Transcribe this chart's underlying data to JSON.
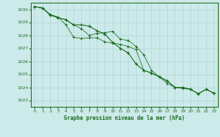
{
  "title": "Graphe pression niveau de la mer (hPa)",
  "background_color": "#cceaea",
  "grid_color": "#b0d4d4",
  "line_color": "#1a6b1a",
  "xlim": [
    -0.5,
    23.5
  ],
  "ylim": [
    1022.5,
    1030.5
  ],
  "yticks": [
    1023,
    1024,
    1025,
    1026,
    1027,
    1028,
    1029,
    1030
  ],
  "xticks": [
    0,
    1,
    2,
    3,
    4,
    5,
    6,
    7,
    8,
    9,
    10,
    11,
    12,
    13,
    14,
    15,
    16,
    17,
    18,
    19,
    20,
    21,
    22,
    23
  ],
  "series": [
    [
      1030.2,
      1030.1,
      1029.6,
      1029.4,
      1028.8,
      1027.85,
      1027.75,
      1027.8,
      1027.8,
      1027.5,
      1027.4,
      1027.3,
      1027.15,
      1026.9,
      1025.3,
      1025.1,
      1024.8,
      1024.5,
      1024.0,
      1024.0,
      1023.85,
      1023.5,
      1023.85,
      1023.55
    ],
    [
      1030.2,
      1030.1,
      1029.55,
      1029.35,
      1029.2,
      1028.8,
      1028.5,
      1028.0,
      1028.15,
      1028.2,
      1028.3,
      1027.7,
      1027.6,
      1027.15,
      1026.5,
      1025.3,
      1024.8,
      1024.3,
      1024.0,
      1023.9,
      1023.85,
      1023.5,
      1023.85,
      1023.55
    ],
    [
      1030.2,
      1030.1,
      1029.55,
      1029.35,
      1029.2,
      1028.8,
      1028.8,
      1028.7,
      1028.35,
      1028.1,
      1027.45,
      1027.0,
      1026.65,
      1025.8,
      1025.3,
      1025.1,
      1024.8,
      1024.5,
      1024.0,
      1024.0,
      1023.85,
      1023.5,
      1023.85,
      1023.55
    ],
    [
      1030.2,
      1030.1,
      1029.55,
      1029.35,
      1029.2,
      1028.8,
      1028.8,
      1028.7,
      1028.35,
      1028.1,
      1027.45,
      1027.0,
      1026.65,
      1025.8,
      1025.3,
      1025.1,
      1024.8,
      1024.5,
      1024.0,
      1024.0,
      1023.85,
      1023.5,
      1023.85,
      1023.55
    ]
  ]
}
